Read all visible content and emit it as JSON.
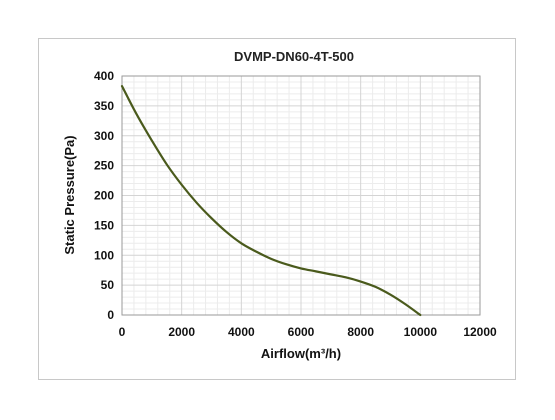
{
  "chart_data": {
    "type": "line",
    "title": "DVMP-DN60-4T-500",
    "xlabel": "Airflow(m³/h)",
    "ylabel": "Static Pressure(Pa)",
    "xlim": [
      0,
      12000
    ],
    "ylim": [
      0,
      400
    ],
    "xticks": [
      0,
      2000,
      4000,
      6000,
      8000,
      10000,
      12000
    ],
    "yticks": [
      0,
      50,
      100,
      150,
      200,
      250,
      300,
      350,
      400
    ],
    "grid": true,
    "legend": "none",
    "series": [
      {
        "color": "#4a5a1c",
        "points": [
          [
            0,
            383
          ],
          [
            500,
            335
          ],
          [
            1000,
            292
          ],
          [
            1500,
            252
          ],
          [
            2000,
            218
          ],
          [
            2500,
            188
          ],
          [
            3000,
            162
          ],
          [
            3500,
            139
          ],
          [
            4000,
            120
          ],
          [
            4500,
            106
          ],
          [
            5000,
            94
          ],
          [
            5500,
            85
          ],
          [
            6000,
            78
          ],
          [
            6500,
            73
          ],
          [
            7000,
            68
          ],
          [
            7500,
            63
          ],
          [
            8000,
            56
          ],
          [
            8500,
            47
          ],
          [
            9000,
            34
          ],
          [
            9500,
            18
          ],
          [
            10000,
            0
          ]
        ]
      }
    ]
  }
}
